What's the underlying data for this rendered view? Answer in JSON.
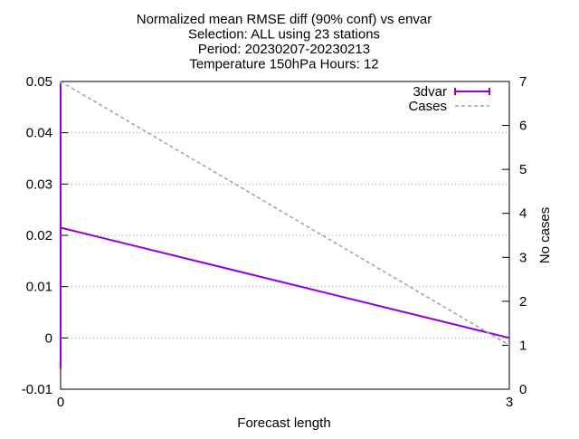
{
  "chart_data": {
    "type": "line",
    "title_lines": [
      "Normalized mean RMSE diff (90% conf) vs envar",
      "Selection: ALL using    23 stations",
      "Period: 20230207-20230213",
      "Temperature 150hPa   Hours: 12"
    ],
    "xlabel": "Forecast length",
    "ylabel": "",
    "y2label": "No cases",
    "xlim": [
      0,
      3
    ],
    "ylim": [
      -0.01,
      0.05
    ],
    "y2lim": [
      0,
      7
    ],
    "x_ticks": [
      "0",
      "3"
    ],
    "x_tick_values": [
      0,
      3
    ],
    "y_ticks": [
      "-0.01",
      "0",
      "0.01",
      "0.02",
      "0.03",
      "0.04",
      "0.05"
    ],
    "y_tick_values": [
      -0.01,
      0,
      0.01,
      0.02,
      0.03,
      0.04,
      0.05
    ],
    "y2_ticks": [
      "0",
      "1",
      "2",
      "3",
      "4",
      "5",
      "6",
      "7"
    ],
    "y2_tick_values": [
      0,
      1,
      2,
      3,
      4,
      5,
      6,
      7
    ],
    "grid": true,
    "legend_position": "top-right",
    "series": [
      {
        "name": "3dvar",
        "axis": "y1",
        "style": "solid-errorbars",
        "color": "#9400d3",
        "x": [
          0,
          3
        ],
        "y": [
          0.0215,
          0.0
        ],
        "err_low": [
          -0.006,
          0.0
        ],
        "err_high": [
          0.0495,
          0.0
        ]
      },
      {
        "name": "Cases",
        "axis": "y2",
        "style": "dashed",
        "color": "#a0a0a0",
        "x": [
          0,
          3
        ],
        "y": [
          7,
          1
        ]
      }
    ]
  }
}
